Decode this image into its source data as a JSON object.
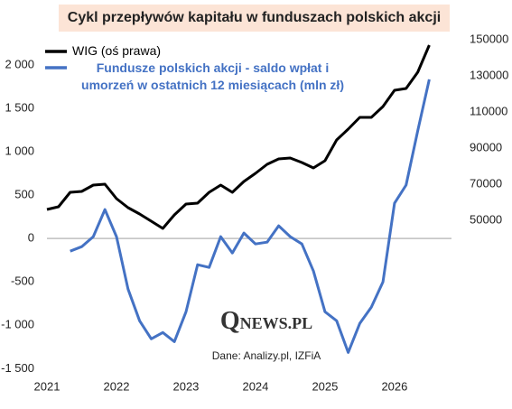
{
  "chart_data": {
    "type": "line",
    "title": "Cykl przepływów kapitału w funduszach polskich akcji",
    "source": "Dane: Analizy.pl, IZFiA",
    "logo": {
      "big": "Q",
      "small": "NEWS.PL"
    },
    "categories": [
      "2021",
      null,
      null,
      null,
      null,
      null,
      "2022",
      null,
      null,
      null,
      null,
      null,
      "2023",
      null,
      null,
      null,
      null,
      null,
      "2024",
      null,
      null,
      null,
      null,
      null,
      "2025",
      null,
      null,
      null,
      null,
      null,
      "2026",
      null,
      null,
      null
    ],
    "series": [
      {
        "name": "WIG (oś prawa)",
        "color": "#000000",
        "axis": "y2",
        "values": [
          56000,
          57500,
          65500,
          66000,
          69500,
          70000,
          62000,
          57000,
          53500,
          49500,
          45500,
          53000,
          59000,
          59500,
          65500,
          69500,
          65500,
          71500,
          76000,
          81000,
          84000,
          84500,
          82000,
          79000,
          83000,
          94500,
          100500,
          107000,
          107000,
          113000,
          122000,
          123000,
          132000,
          147000
        ]
      },
      {
        "name": "Fundusze polskich akcji - saldo wpłat i umorzeń w ostatnich 12 miesiącach (mln zł)",
        "color": "#4472c4",
        "values": [
          null,
          null,
          -146,
          -94,
          21,
          333,
          21,
          -583,
          -948,
          -1156,
          -1083,
          -1188,
          -844,
          -302,
          -333,
          21,
          -167,
          63,
          -63,
          -42,
          146,
          21,
          -63,
          -375,
          -844,
          -948,
          -1313,
          -979,
          -792,
          -500,
          406,
          615,
          1240,
          1833
        ]
      }
    ],
    "ylim": [
      -1600,
      2300
    ],
    "yticks": [
      {
        "value": -1500,
        "label": "-1 500"
      },
      {
        "value": -1000,
        "label": "-1 000"
      },
      -500,
      0,
      500,
      {
        "value": 1000,
        "label": "1 000"
      },
      {
        "value": 1500,
        "label": "1 500"
      },
      {
        "value": 2000,
        "label": "2 000"
      }
    ],
    "y2lim": [
      -37000,
      150500
    ],
    "y2ticks": [
      50000,
      70000,
      90000,
      110000,
      130000,
      150000
    ],
    "zero_line": true
  }
}
